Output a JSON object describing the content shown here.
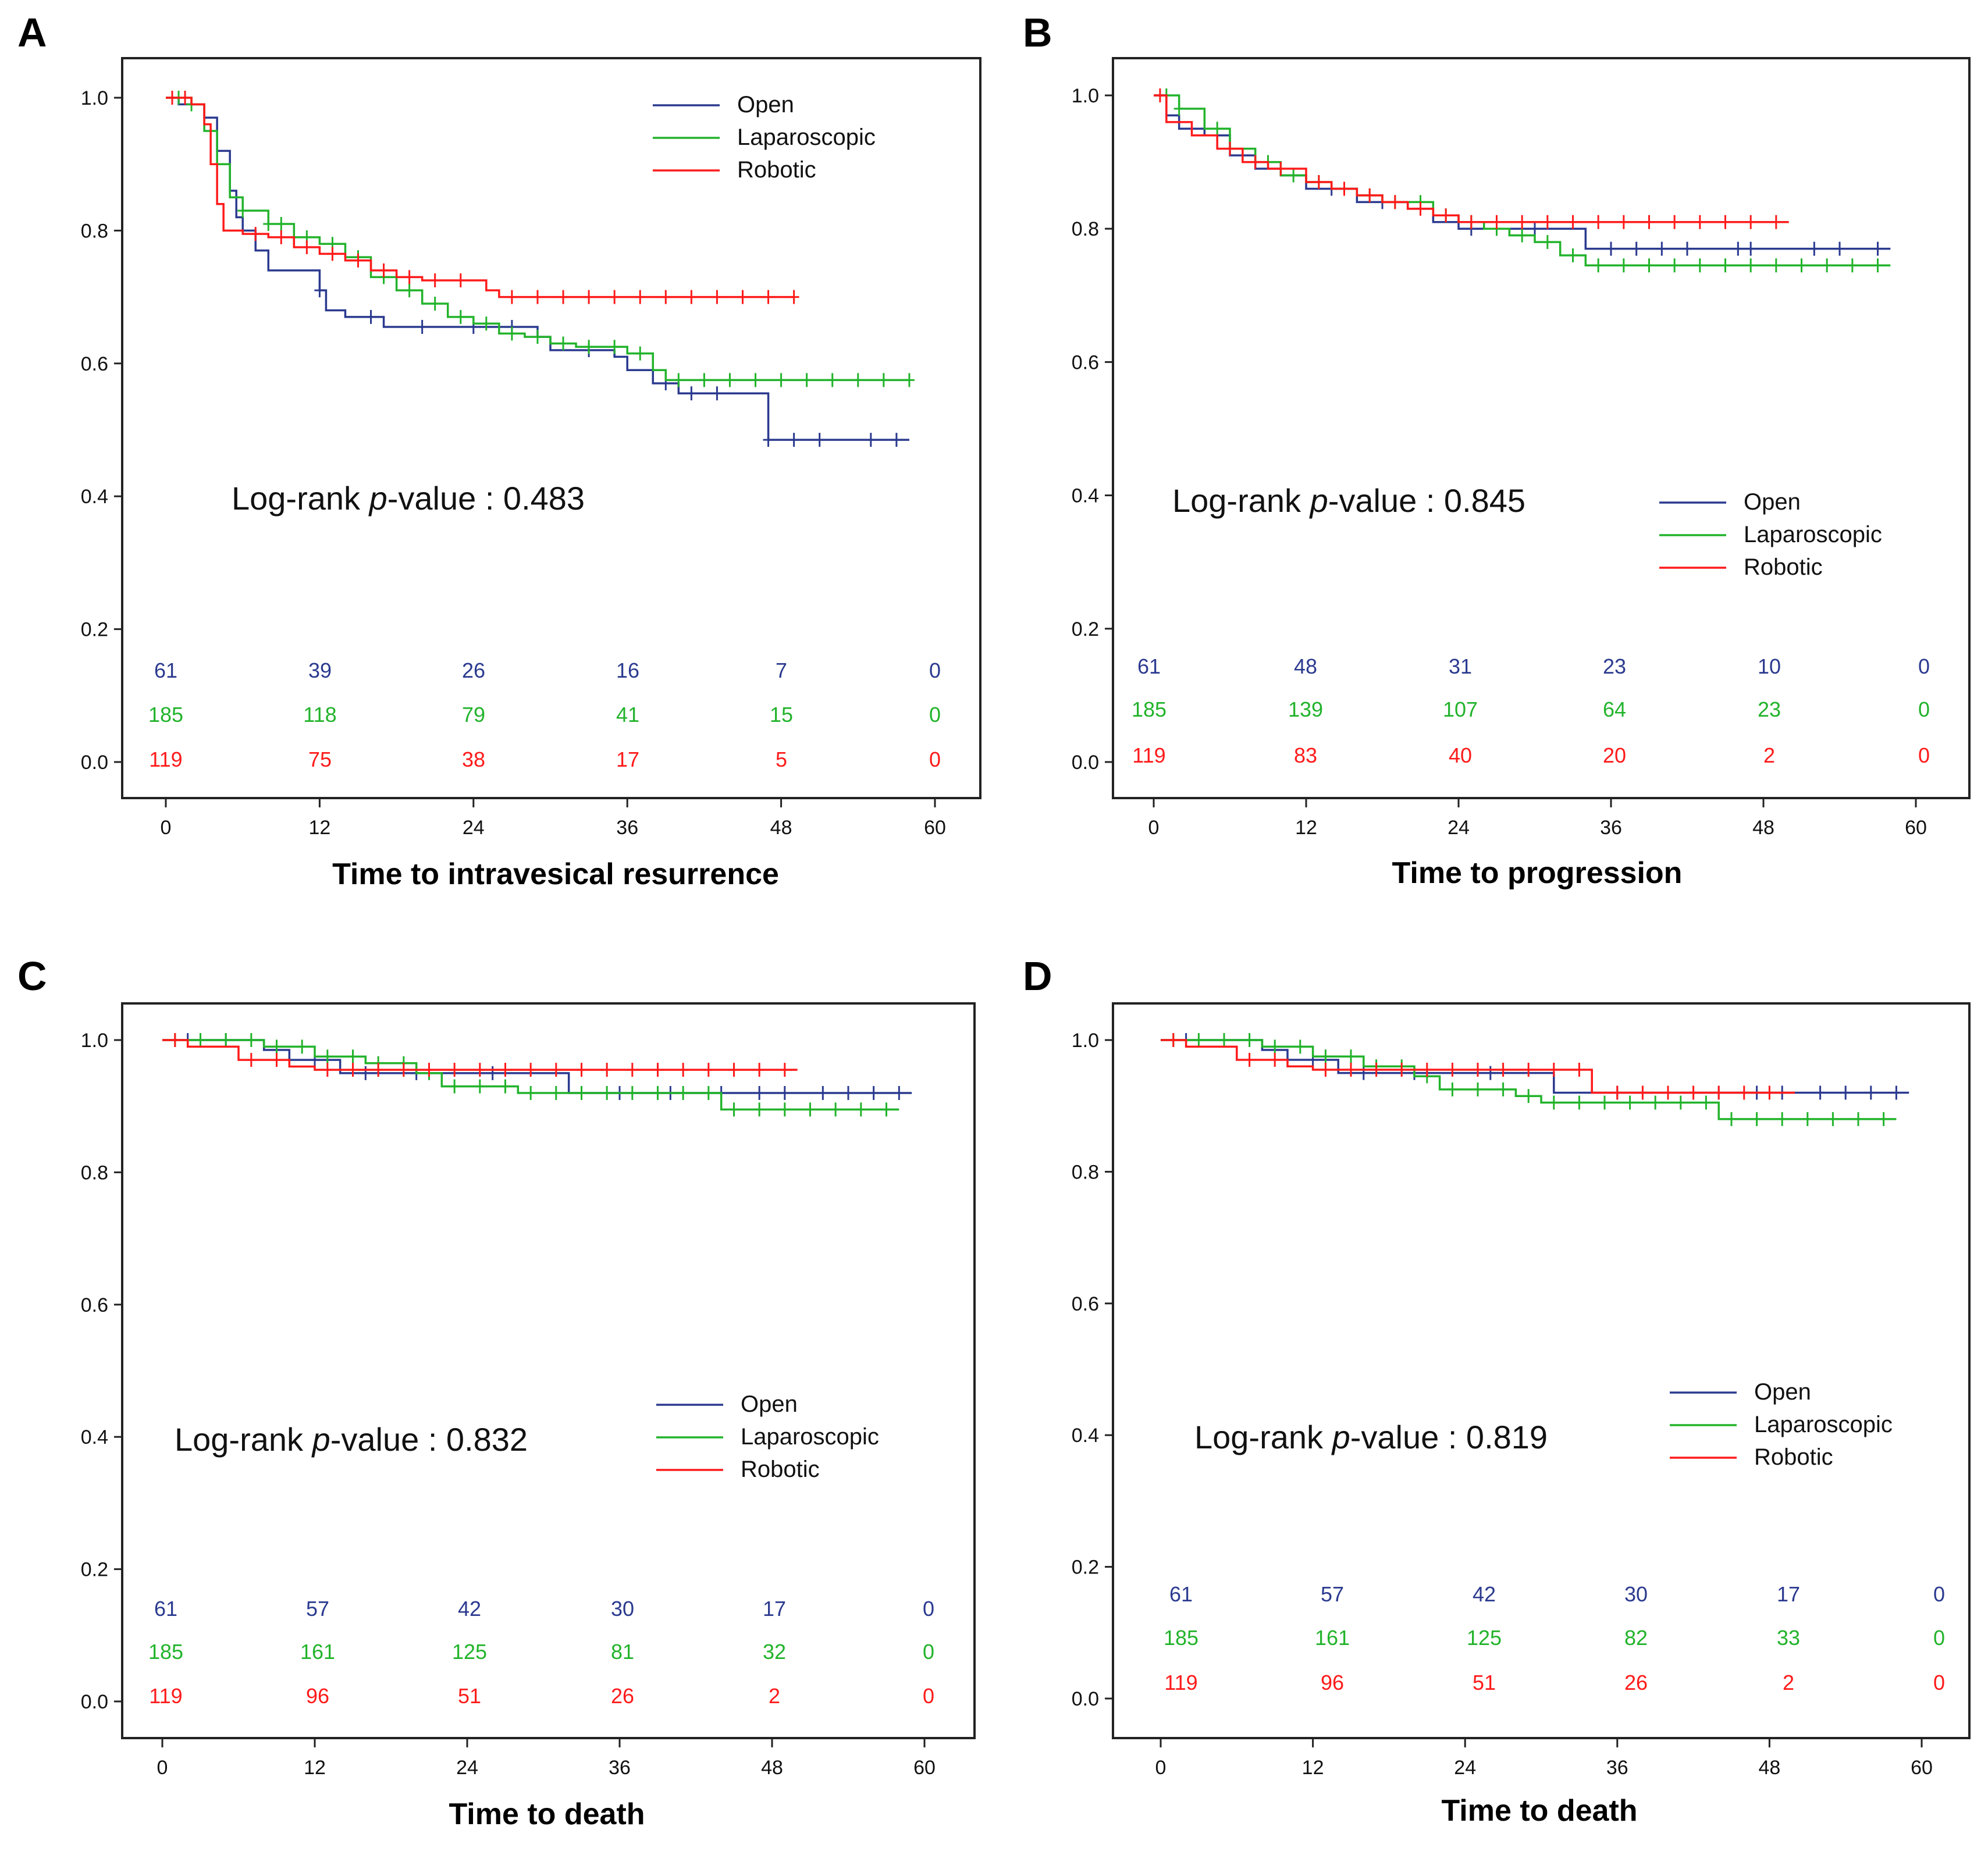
{
  "colors": {
    "open": "#2b3a8f",
    "laparoscopic": "#22b32b",
    "robotic": "#ff1a1a",
    "axis": "#222222"
  },
  "chart_data": [
    {
      "type": "line",
      "panel_label": "A",
      "xlabel": "Time to intravesical resurrence",
      "ylabel": "",
      "xlim": [
        0,
        60
      ],
      "ylim": [
        0,
        1
      ],
      "xticks": [
        "0",
        "12",
        "24",
        "36",
        "48",
        "60"
      ],
      "yticks": [
        "0.0",
        "0.2",
        "0.4",
        "0.6",
        "0.8",
        "1.0"
      ],
      "annotation": {
        "prefix": "Log-rank ",
        "p": "p",
        "suffix": "-value : 0.483"
      },
      "legend_position": "top-right",
      "legend": [
        "Open",
        "Laparoscopic",
        "Robotic"
      ],
      "risk_table": [
        {
          "series": "Open",
          "values": [
            "61",
            "39",
            "26",
            "16",
            "7",
            "0"
          ]
        },
        {
          "series": "Laparoscopic",
          "values": [
            "185",
            "118",
            "79",
            "41",
            "15",
            "0"
          ]
        },
        {
          "series": "Robotic",
          "values": [
            "119",
            "75",
            "38",
            "17",
            "5",
            "0"
          ]
        }
      ],
      "series": [
        {
          "name": "Open",
          "x": [
            0,
            1,
            3,
            4,
            5,
            5.5,
            6,
            7,
            8,
            12,
            12.5,
            14,
            17,
            22,
            29,
            30,
            35,
            36,
            38,
            40,
            47,
            58
          ],
          "y": [
            1.0,
            0.99,
            0.97,
            0.92,
            0.86,
            0.82,
            0.8,
            0.77,
            0.74,
            0.71,
            0.68,
            0.67,
            0.655,
            0.655,
            0.64,
            0.62,
            0.61,
            0.59,
            0.57,
            0.555,
            0.485,
            0.485
          ],
          "censored": [
            12,
            16,
            20,
            24,
            27,
            33,
            39,
            41,
            43,
            47,
            49,
            51,
            55,
            57
          ]
        },
        {
          "name": "Laparoscopic",
          "x": [
            0,
            2,
            3,
            4,
            5,
            6,
            8,
            10,
            12,
            14,
            16,
            18,
            20,
            22,
            24,
            26,
            28,
            30,
            32,
            36,
            38,
            39,
            58
          ],
          "y": [
            1.0,
            0.99,
            0.95,
            0.9,
            0.85,
            0.83,
            0.81,
            0.79,
            0.78,
            0.76,
            0.73,
            0.71,
            0.69,
            0.67,
            0.66,
            0.645,
            0.64,
            0.63,
            0.625,
            0.615,
            0.59,
            0.575,
            0.575
          ],
          "censored": [
            1,
            2,
            6,
            8,
            9,
            10,
            11,
            13,
            15,
            17,
            19,
            21,
            23,
            25,
            27,
            29,
            31,
            33,
            35,
            37,
            40,
            42,
            44,
            46,
            48,
            50,
            52,
            54,
            56,
            58
          ]
        },
        {
          "name": "Robotic",
          "x": [
            0,
            2,
            3,
            3.5,
            4,
            4.5,
            5,
            6,
            8,
            10,
            12,
            14,
            16,
            18,
            20,
            22,
            25,
            26,
            49
          ],
          "y": [
            1.0,
            0.99,
            0.96,
            0.9,
            0.84,
            0.8,
            0.8,
            0.795,
            0.79,
            0.775,
            0.765,
            0.755,
            0.74,
            0.73,
            0.725,
            0.725,
            0.71,
            0.7,
            0.7
          ],
          "censored": [
            0.5,
            1.5,
            7,
            9,
            11,
            13,
            15,
            17,
            19,
            21,
            23,
            27,
            29,
            31,
            33,
            35,
            37,
            39,
            41,
            43,
            45,
            47,
            49
          ]
        }
      ]
    },
    {
      "type": "line",
      "panel_label": "B",
      "xlabel": "Time to progression",
      "ylabel": "",
      "xlim": [
        0,
        60
      ],
      "ylim": [
        0,
        1
      ],
      "xticks": [
        "0",
        "12",
        "24",
        "36",
        "48",
        "60"
      ],
      "yticks": [
        "0.0",
        "0.2",
        "0.4",
        "0.6",
        "0.8",
        "1.0"
      ],
      "annotation": {
        "prefix": "Log-rank ",
        "p": "p",
        "suffix": "-value : 0.845"
      },
      "legend_position": "center-right",
      "legend": [
        "Open",
        "Laparoscopic",
        "Robotic"
      ],
      "risk_table": [
        {
          "series": "Open",
          "values": [
            "61",
            "48",
            "31",
            "23",
            "10",
            "0"
          ]
        },
        {
          "series": "Laparoscopic",
          "values": [
            "185",
            "139",
            "107",
            "64",
            "23",
            "0"
          ]
        },
        {
          "series": "Robotic",
          "values": [
            "119",
            "83",
            "40",
            "20",
            "2",
            "0"
          ]
        }
      ],
      "series": [
        {
          "name": "Open",
          "x": [
            0,
            1,
            2,
            4,
            6,
            8,
            10,
            12,
            16,
            20,
            22,
            24,
            28,
            34,
            58
          ],
          "y": [
            1.0,
            0.97,
            0.95,
            0.94,
            0.91,
            0.89,
            0.88,
            0.86,
            0.84,
            0.83,
            0.81,
            0.8,
            0.8,
            0.77,
            0.77
          ],
          "censored": [
            14,
            18,
            25,
            27,
            30,
            36,
            38,
            40,
            42,
            46,
            47,
            52,
            54,
            57
          ]
        },
        {
          "name": "Laparoscopic",
          "x": [
            0,
            2,
            4,
            6,
            8,
            10,
            12,
            14,
            16,
            18,
            20,
            22,
            24,
            26,
            28,
            30,
            32,
            34,
            58
          ],
          "y": [
            1.0,
            0.98,
            0.95,
            0.92,
            0.9,
            0.88,
            0.87,
            0.86,
            0.85,
            0.84,
            0.84,
            0.82,
            0.81,
            0.8,
            0.79,
            0.78,
            0.76,
            0.745,
            0.745
          ],
          "censored": [
            1,
            2,
            5,
            9,
            11,
            13,
            15,
            17,
            19,
            21,
            23,
            25,
            27,
            29,
            31,
            33,
            35,
            37,
            39,
            41,
            43,
            45,
            47,
            49,
            51,
            53,
            55,
            57
          ]
        },
        {
          "name": "Robotic",
          "x": [
            0,
            1,
            3,
            5,
            7,
            9,
            12,
            14,
            16,
            18,
            20,
            22,
            24,
            50
          ],
          "y": [
            1.0,
            0.96,
            0.94,
            0.92,
            0.9,
            0.89,
            0.87,
            0.86,
            0.85,
            0.84,
            0.83,
            0.82,
            0.81,
            0.81
          ],
          "censored": [
            0.5,
            6,
            8,
            10,
            13,
            15,
            17,
            19,
            21,
            23,
            25,
            27,
            29,
            31,
            33,
            35,
            37,
            39,
            41,
            43,
            45,
            47,
            49
          ]
        }
      ]
    },
    {
      "type": "line",
      "panel_label": "C",
      "xlabel": "Time to death",
      "ylabel": "",
      "xlim": [
        0,
        60
      ],
      "ylim": [
        0,
        1
      ],
      "xticks": [
        "0",
        "12",
        "24",
        "36",
        "48",
        "60"
      ],
      "yticks": [
        "0.0",
        "0.2",
        "0.4",
        "0.6",
        "0.8",
        "1.0"
      ],
      "annotation": {
        "prefix": "Log-rank ",
        "p": "p",
        "suffix": "-value : 0.832"
      },
      "legend_position": "center-right",
      "legend": [
        "Open",
        "Laparoscopic",
        "Robotic"
      ],
      "risk_table": [
        {
          "series": "Open",
          "values": [
            "61",
            "57",
            "42",
            "30",
            "17",
            "0"
          ]
        },
        {
          "series": "Laparoscopic",
          "values": [
            "185",
            "161",
            "125",
            "81",
            "32",
            "0"
          ]
        },
        {
          "series": "Robotic",
          "values": [
            "119",
            "96",
            "51",
            "26",
            "2",
            "0"
          ]
        }
      ],
      "series": [
        {
          "name": "Open",
          "x": [
            0,
            6,
            8,
            10,
            14,
            24,
            32,
            59
          ],
          "y": [
            1.0,
            1.0,
            0.985,
            0.97,
            0.95,
            0.95,
            0.92,
            0.92
          ],
          "censored": [
            2,
            5,
            12,
            16,
            20,
            26,
            36,
            40,
            44,
            47,
            49,
            52,
            54,
            56,
            58
          ]
        },
        {
          "name": "Laparoscopic",
          "x": [
            0,
            4,
            8,
            12,
            16,
            20,
            22,
            28,
            44,
            58
          ],
          "y": [
            1.0,
            1.0,
            0.99,
            0.975,
            0.965,
            0.95,
            0.93,
            0.92,
            0.895,
            0.895
          ],
          "censored": [
            1,
            3,
            5,
            7,
            9,
            11,
            13,
            15,
            17,
            19,
            21,
            23,
            25,
            27,
            29,
            31,
            33,
            35,
            37,
            39,
            41,
            43,
            45,
            47,
            49,
            51,
            53,
            55,
            57
          ]
        },
        {
          "name": "Robotic",
          "x": [
            0,
            2,
            6,
            10,
            12,
            16,
            50
          ],
          "y": [
            1.0,
            0.99,
            0.97,
            0.96,
            0.955,
            0.955,
            0.955
          ],
          "censored": [
            1,
            7,
            9,
            13,
            15,
            17,
            19,
            21,
            23,
            25,
            27,
            29,
            31,
            33,
            35,
            37,
            39,
            41,
            43,
            45,
            47,
            49
          ]
        }
      ]
    },
    {
      "type": "line",
      "panel_label": "D",
      "xlabel": "Time to death",
      "ylabel": "",
      "xlim": [
        0,
        60
      ],
      "ylim": [
        0,
        1
      ],
      "xticks": [
        "0",
        "12",
        "24",
        "36",
        "48",
        "60"
      ],
      "yticks": [
        "0.0",
        "0.2",
        "0.4",
        "0.6",
        "0.8",
        "1.0"
      ],
      "annotation": {
        "prefix": "Log-rank ",
        "p": "p",
        "suffix": "-value : 0.819"
      },
      "legend_position": "center-right",
      "legend": [
        "Open",
        "Laparoscopic",
        "Robotic"
      ],
      "risk_table": [
        {
          "series": "Open",
          "values": [
            "61",
            "57",
            "42",
            "30",
            "17",
            "0"
          ]
        },
        {
          "series": "Laparoscopic",
          "values": [
            "185",
            "161",
            "125",
            "82",
            "33",
            "0"
          ]
        },
        {
          "series": "Robotic",
          "values": [
            "119",
            "96",
            "51",
            "26",
            "2",
            "0"
          ]
        }
      ],
      "series": [
        {
          "name": "Open",
          "x": [
            0,
            6,
            8,
            10,
            14,
            24,
            31,
            59
          ],
          "y": [
            1.0,
            1.0,
            0.985,
            0.97,
            0.95,
            0.95,
            0.92,
            0.92
          ],
          "censored": [
            2,
            5,
            12,
            16,
            20,
            26,
            36,
            40,
            44,
            47,
            49,
            52,
            54,
            56,
            58
          ]
        },
        {
          "name": "Laparoscopic",
          "x": [
            0,
            4,
            8,
            12,
            16,
            20,
            22,
            28,
            30,
            44,
            58
          ],
          "y": [
            1.0,
            1.0,
            0.99,
            0.975,
            0.96,
            0.945,
            0.925,
            0.915,
            0.905,
            0.88,
            0.88
          ],
          "censored": [
            1,
            3,
            5,
            7,
            9,
            11,
            13,
            15,
            17,
            19,
            21,
            23,
            25,
            27,
            29,
            31,
            33,
            35,
            37,
            39,
            41,
            43,
            45,
            47,
            49,
            51,
            53,
            55,
            57
          ]
        },
        {
          "name": "Robotic",
          "x": [
            0,
            2,
            6,
            10,
            12,
            16,
            34,
            50
          ],
          "y": [
            1.0,
            0.99,
            0.97,
            0.96,
            0.955,
            0.955,
            0.92,
            0.92
          ],
          "censored": [
            1,
            7,
            9,
            13,
            15,
            17,
            19,
            21,
            23,
            25,
            27,
            29,
            31,
            33,
            36,
            38,
            40,
            42,
            44,
            46,
            48
          ]
        }
      ]
    }
  ]
}
